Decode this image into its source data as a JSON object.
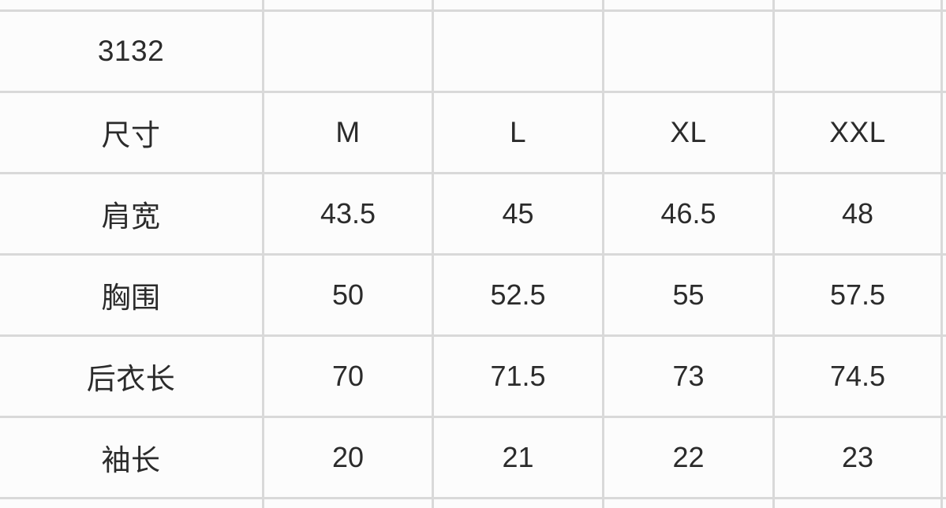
{
  "colors": {
    "grid_line": "#d9d9d9",
    "cell_background": "#fcfcfc",
    "text": "#2b2b2b"
  },
  "size_chart": {
    "product_code": "3132",
    "header": {
      "label": "尺寸",
      "sizes": [
        "M",
        "L",
        "XL",
        "XXL"
      ]
    },
    "rows": [
      {
        "label": "肩宽",
        "values": [
          "43.5",
          "45",
          "46.5",
          "48"
        ]
      },
      {
        "label": "胸围",
        "values": [
          "50",
          "52.5",
          "55",
          "57.5"
        ]
      },
      {
        "label": "后衣长",
        "values": [
          "70",
          "71.5",
          "73",
          "74.5"
        ]
      },
      {
        "label": "袖长",
        "values": [
          "20",
          "21",
          "22",
          "23"
        ]
      }
    ]
  },
  "chart_data": {
    "type": "table",
    "title": "3132",
    "columns": [
      "尺寸",
      "M",
      "L",
      "XL",
      "XXL"
    ],
    "rows": [
      [
        "肩宽",
        43.5,
        45,
        46.5,
        48
      ],
      [
        "胸围",
        50,
        52.5,
        55,
        57.5
      ],
      [
        "后衣长",
        70,
        71.5,
        73,
        74.5
      ],
      [
        "袖长",
        20,
        21,
        22,
        23
      ]
    ]
  }
}
